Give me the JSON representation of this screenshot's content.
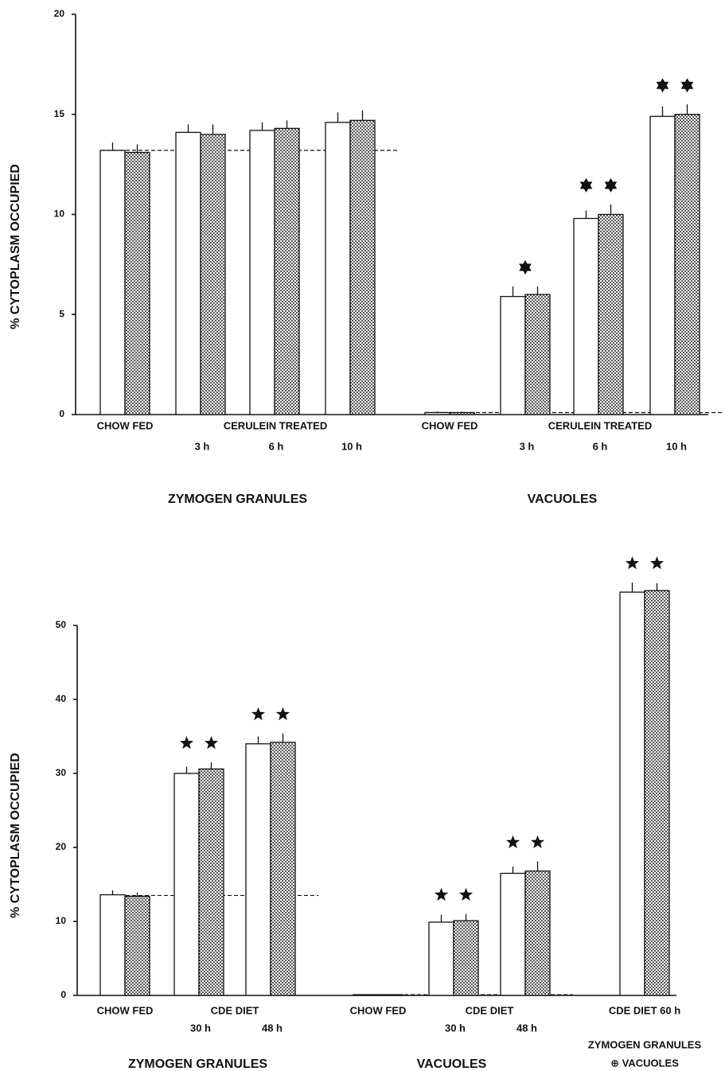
{
  "chart_data": [
    {
      "type": "bar",
      "ylabel": "% CYTOPLASM OCCUPIED",
      "ylim": [
        0,
        20
      ],
      "yticks": [
        0,
        5,
        10,
        15,
        20
      ],
      "categories": [
        null,
        "3 h",
        "6 h",
        "10 h",
        null,
        "3 h",
        "6 h",
        "10 h"
      ],
      "treatments": [
        {
          "label": "CHOW FED",
          "from": 0,
          "to": 0
        },
        {
          "label": "CERULEIN TREATED",
          "from": 1,
          "to": 3
        },
        {
          "label": "CHOW FED",
          "from": 4,
          "to": 4
        },
        {
          "label": "CERULEIN TREATED",
          "from": 5,
          "to": 7
        }
      ],
      "groups": [
        {
          "lines": [
            "ZYMOGEN GRANULES"
          ],
          "from": 0,
          "to": 3
        },
        {
          "lines": [
            "VACUOLES"
          ],
          "from": 4,
          "to": 7
        }
      ],
      "series": [
        {
          "color": "#ffffff",
          "pattern": "none",
          "values": [
            13.2,
            14.1,
            14.2,
            14.6,
            0.1,
            5.9,
            9.8,
            14.9
          ],
          "errors": [
            0.4,
            0.4,
            0.4,
            0.5,
            0.05,
            0.5,
            0.4,
            0.5
          ]
        },
        {
          "color": "#ffffff",
          "pattern": "dots",
          "values": [
            13.1,
            14.0,
            14.3,
            14.7,
            0.1,
            6.0,
            10.0,
            15.0
          ],
          "errors": [
            0.4,
            0.5,
            0.4,
            0.5,
            0.05,
            0.4,
            0.5,
            0.5
          ]
        }
      ],
      "stars": [
        0,
        0,
        0,
        0,
        0,
        1,
        2,
        2
      ],
      "star_points": 6,
      "reference_lines": [
        {
          "value": 13.2,
          "from": 0,
          "to": 3
        },
        {
          "value": 0.1,
          "from": 4,
          "to": 7
        }
      ]
    },
    {
      "type": "bar",
      "ylabel": "% CYTOPLASM OCCUPIED",
      "ylim": [
        0,
        50
      ],
      "yticks": [
        0,
        10,
        20,
        30,
        40,
        50
      ],
      "categories": [
        null,
        "30 h",
        "48 h",
        null,
        "30 h",
        "48 h",
        null
      ],
      "treatments": [
        {
          "label": "CHOW FED",
          "from": 0,
          "to": 0
        },
        {
          "label": "CDE DIET",
          "from": 1,
          "to": 2
        },
        {
          "label": "CHOW FED",
          "from": 3,
          "to": 3
        },
        {
          "label": "CDE DIET",
          "from": 4,
          "to": 5
        },
        {
          "label": "CDE DIET 60 h",
          "from": 6,
          "to": 6
        }
      ],
      "groups": [
        {
          "lines": [
            "ZYMOGEN GRANULES"
          ],
          "from": 0,
          "to": 2
        },
        {
          "lines": [
            "VACUOLES"
          ],
          "from": 3,
          "to": 5
        },
        {
          "lines": [
            "ZYMOGEN GRANULES",
            "⊕ VACUOLES"
          ],
          "from": 6,
          "to": 6
        }
      ],
      "series": [
        {
          "color": "#ffffff",
          "pattern": "none",
          "values": [
            13.6,
            30.0,
            34.0,
            0.1,
            9.9,
            16.5,
            54.5
          ],
          "errors": [
            0.6,
            0.9,
            1.0,
            0.05,
            1.0,
            0.9,
            1.3
          ]
        },
        {
          "color": "#ffffff",
          "pattern": "dots",
          "values": [
            13.4,
            30.6,
            34.2,
            0.1,
            10.1,
            16.8,
            54.7
          ],
          "errors": [
            0.5,
            0.9,
            1.2,
            0.05,
            0.9,
            1.3,
            1.0
          ]
        }
      ],
      "stars": [
        0,
        2,
        2,
        0,
        2,
        2,
        2
      ],
      "star_points": 5,
      "reference_lines": [
        {
          "value": 13.5,
          "from": 0,
          "to": 2
        },
        {
          "value": 0.1,
          "from": 3,
          "to": 5
        }
      ]
    }
  ]
}
